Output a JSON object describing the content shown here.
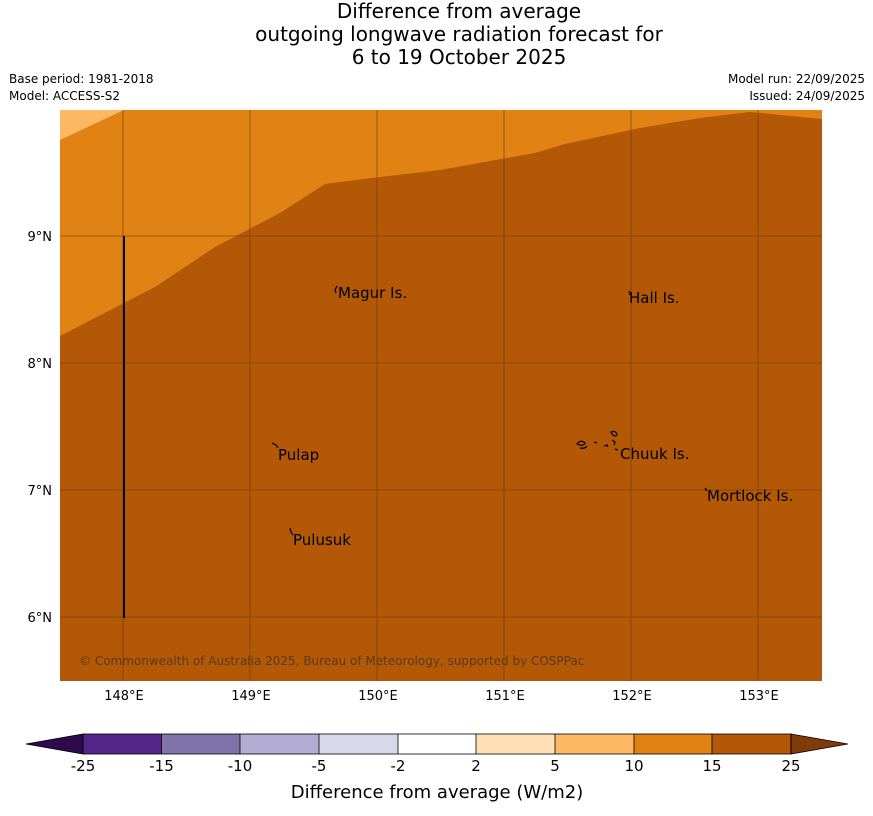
{
  "title": {
    "line1": "Difference from average",
    "line2": "outgoing longwave radiation forecast for",
    "line3": "6 to 19 October 2025"
  },
  "meta": {
    "base_period": "Base period: 1981-2018",
    "model": "Model: ACCESS-S2",
    "model_run": "Model run: 22/09/2025",
    "issued": "Issued: 24/09/2025"
  },
  "map": {
    "lon_ticks": [
      "148°E",
      "149°E",
      "150°E",
      "151°E",
      "152°E",
      "153°E"
    ],
    "lat_ticks": [
      "9°N",
      "8°N",
      "7°N",
      "6°N"
    ],
    "places": {
      "magur": "Magur Is.",
      "hall": "Hall Is.",
      "pulap": "Pulap",
      "chuuk": "Chuuk Is.",
      "mortlock": "Mortlock Is.",
      "pulusuk": "Pulusuk"
    },
    "copyright": "© Commonwealth of Australia 2025, Bureau of Meteorology, supported by COSPPac"
  },
  "colorbar": {
    "title": "Difference from average (W/m2)",
    "labels": [
      "-25",
      "-15",
      "-10",
      "-5",
      "-2",
      "2",
      "5",
      "10",
      "15",
      "25"
    ],
    "colors": {
      "below_min": "#2d0a4b",
      "bins": [
        "#542688",
        "#8073ac",
        "#b2abd2",
        "#d8daeb",
        "#ffffff",
        "#fee0b6",
        "#fdb863",
        "#e08214",
        "#b35806"
      ],
      "above_max": "#7f3b08"
    }
  }
}
